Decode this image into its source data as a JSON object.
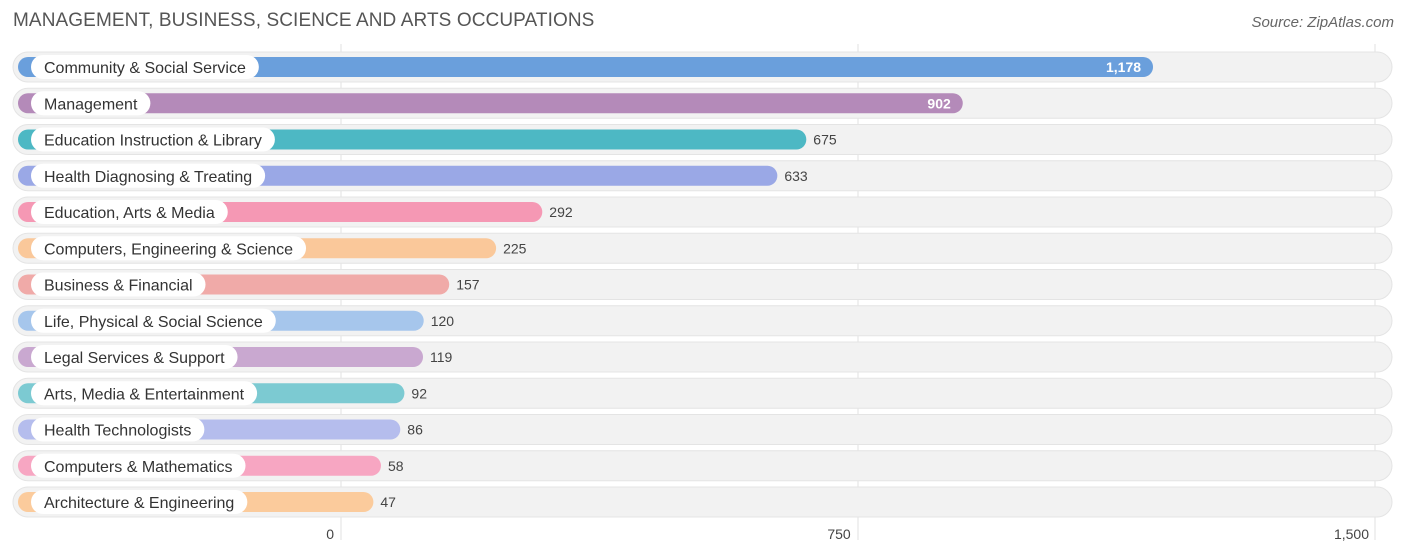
{
  "header": {
    "title": "MANAGEMENT, BUSINESS, SCIENCE AND ARTS OCCUPATIONS",
    "source": "Source: ZipAtlas.com"
  },
  "chart_data": {
    "type": "bar",
    "orientation": "horizontal",
    "categories": [
      "Community & Social Service",
      "Management",
      "Education Instruction & Library",
      "Health Diagnosing & Treating",
      "Education, Arts & Media",
      "Computers, Engineering & Science",
      "Business & Financial",
      "Life, Physical & Social Science",
      "Legal Services & Support",
      "Arts, Media & Entertainment",
      "Health Technologists",
      "Computers & Mathematics",
      "Architecture & Engineering"
    ],
    "values": [
      1178,
      902,
      675,
      633,
      292,
      225,
      157,
      120,
      119,
      92,
      86,
      58,
      47
    ],
    "value_labels": [
      "1,178",
      "902",
      "675",
      "633",
      "292",
      "225",
      "157",
      "120",
      "119",
      "92",
      "86",
      "58",
      "47"
    ],
    "colors": [
      "#6a9fdc",
      "#b48ab9",
      "#4db8c4",
      "#9aa8e6",
      "#f598b4",
      "#fac89a",
      "#f0aaa8",
      "#a6c6ec",
      "#c9a8d0",
      "#7ccad2",
      "#b5bded",
      "#f7a6c2",
      "#fbcb9c"
    ],
    "xlim": [
      0,
      1500
    ],
    "xticks": [
      0,
      750,
      1500
    ],
    "xtick_labels": [
      "0",
      "750",
      "1,500"
    ],
    "grid": true
  }
}
